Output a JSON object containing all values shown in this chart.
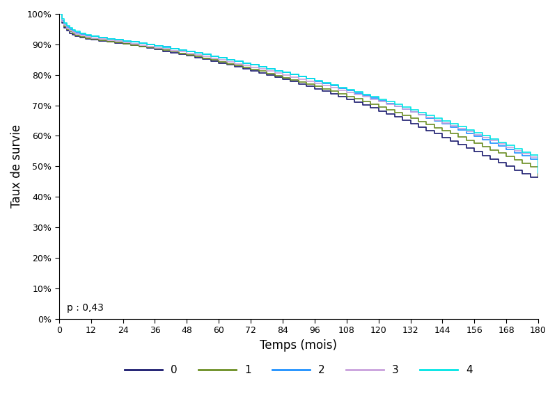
{
  "xlabel": "Temps (mois)",
  "ylabel": "Taux de survie",
  "p_text": "p : 0,43",
  "xlim": [
    0,
    180
  ],
  "ylim": [
    0,
    1.0
  ],
  "xticks": [
    0,
    12,
    24,
    36,
    48,
    60,
    72,
    84,
    96,
    108,
    120,
    132,
    144,
    156,
    168,
    180
  ],
  "yticks": [
    0.0,
    0.1,
    0.2,
    0.3,
    0.4,
    0.5,
    0.6,
    0.7,
    0.8,
    0.9,
    1.0
  ],
  "ytick_labels": [
    "0%",
    "10%",
    "20%",
    "30%",
    "40%",
    "50%",
    "60%",
    "70%",
    "80%",
    "90%",
    "100%"
  ],
  "legend_labels": [
    "0",
    "1",
    "2",
    "3",
    "4"
  ],
  "colors": [
    "#1a1a6e",
    "#6b8e23",
    "#1e90ff",
    "#c9a0dc",
    "#00e5e5"
  ],
  "linewidths": [
    1.2,
    1.2,
    1.2,
    1.2,
    1.2
  ],
  "series": {
    "0": {
      "x": [
        0,
        1,
        2,
        3,
        4,
        5,
        6,
        8,
        10,
        12,
        15,
        18,
        21,
        24,
        27,
        30,
        33,
        36,
        39,
        42,
        45,
        48,
        51,
        54,
        57,
        60,
        63,
        66,
        69,
        72,
        75,
        78,
        81,
        84,
        87,
        90,
        93,
        96,
        99,
        102,
        105,
        108,
        111,
        114,
        117,
        120,
        123,
        126,
        129,
        132,
        135,
        138,
        141,
        144,
        147,
        150,
        153,
        156,
        159,
        162,
        165,
        168,
        171,
        174,
        177,
        180
      ],
      "y": [
        1.0,
        0.97,
        0.955,
        0.945,
        0.937,
        0.932,
        0.927,
        0.922,
        0.918,
        0.916,
        0.912,
        0.908,
        0.905,
        0.901,
        0.897,
        0.892,
        0.888,
        0.883,
        0.878,
        0.873,
        0.868,
        0.863,
        0.857,
        0.851,
        0.845,
        0.839,
        0.833,
        0.826,
        0.82,
        0.813,
        0.806,
        0.799,
        0.792,
        0.785,
        0.778,
        0.77,
        0.762,
        0.754,
        0.746,
        0.737,
        0.729,
        0.72,
        0.711,
        0.701,
        0.692,
        0.682,
        0.672,
        0.662,
        0.651,
        0.64,
        0.629,
        0.618,
        0.607,
        0.595,
        0.583,
        0.572,
        0.56,
        0.548,
        0.536,
        0.524,
        0.512,
        0.5,
        0.488,
        0.476,
        0.464,
        0.475
      ]
    },
    "1": {
      "x": [
        0,
        1,
        2,
        3,
        4,
        5,
        6,
        8,
        10,
        12,
        15,
        18,
        21,
        24,
        27,
        30,
        33,
        36,
        39,
        42,
        45,
        48,
        51,
        54,
        57,
        60,
        63,
        66,
        69,
        72,
        75,
        78,
        81,
        84,
        87,
        90,
        93,
        96,
        99,
        102,
        105,
        108,
        111,
        114,
        117,
        120,
        123,
        126,
        129,
        132,
        135,
        138,
        141,
        144,
        147,
        150,
        153,
        156,
        159,
        162,
        165,
        168,
        171,
        174,
        177,
        180
      ],
      "y": [
        1.0,
        0.975,
        0.96,
        0.95,
        0.942,
        0.936,
        0.93,
        0.924,
        0.92,
        0.917,
        0.913,
        0.909,
        0.906,
        0.902,
        0.898,
        0.894,
        0.89,
        0.885,
        0.881,
        0.876,
        0.871,
        0.866,
        0.861,
        0.855,
        0.849,
        0.843,
        0.837,
        0.831,
        0.825,
        0.818,
        0.812,
        0.805,
        0.798,
        0.791,
        0.784,
        0.777,
        0.77,
        0.762,
        0.754,
        0.746,
        0.738,
        0.729,
        0.721,
        0.712,
        0.703,
        0.694,
        0.685,
        0.676,
        0.667,
        0.657,
        0.647,
        0.637,
        0.627,
        0.617,
        0.607,
        0.596,
        0.586,
        0.575,
        0.564,
        0.554,
        0.543,
        0.532,
        0.521,
        0.51,
        0.499,
        0.47
      ]
    },
    "2": {
      "x": [
        0,
        1,
        2,
        3,
        4,
        5,
        6,
        8,
        10,
        12,
        15,
        18,
        21,
        24,
        27,
        30,
        33,
        36,
        39,
        42,
        45,
        48,
        51,
        54,
        57,
        60,
        63,
        66,
        69,
        72,
        75,
        78,
        81,
        84,
        87,
        90,
        93,
        96,
        99,
        102,
        105,
        108,
        111,
        114,
        117,
        120,
        123,
        126,
        129,
        132,
        135,
        138,
        141,
        144,
        147,
        150,
        153,
        156,
        159,
        162,
        165,
        168,
        171,
        174,
        177,
        180
      ],
      "y": [
        1.0,
        0.978,
        0.966,
        0.957,
        0.95,
        0.944,
        0.939,
        0.934,
        0.93,
        0.926,
        0.922,
        0.919,
        0.915,
        0.912,
        0.908,
        0.904,
        0.9,
        0.896,
        0.892,
        0.887,
        0.882,
        0.877,
        0.872,
        0.867,
        0.861,
        0.856,
        0.85,
        0.844,
        0.839,
        0.833,
        0.827,
        0.82,
        0.814,
        0.808,
        0.801,
        0.794,
        0.787,
        0.78,
        0.773,
        0.765,
        0.757,
        0.749,
        0.741,
        0.733,
        0.724,
        0.715,
        0.706,
        0.697,
        0.688,
        0.679,
        0.669,
        0.659,
        0.649,
        0.639,
        0.629,
        0.619,
        0.609,
        0.598,
        0.588,
        0.577,
        0.566,
        0.556,
        0.545,
        0.534,
        0.523,
        0.478
      ]
    },
    "3": {
      "x": [
        0,
        1,
        2,
        3,
        4,
        5,
        6,
        8,
        10,
        12,
        15,
        18,
        21,
        24,
        27,
        30,
        33,
        36,
        39,
        42,
        45,
        48,
        51,
        54,
        57,
        60,
        63,
        66,
        69,
        72,
        75,
        78,
        81,
        84,
        87,
        90,
        93,
        96,
        99,
        102,
        105,
        108,
        111,
        114,
        117,
        120,
        123,
        126,
        129,
        132,
        135,
        138,
        141,
        144,
        147,
        150,
        153,
        156,
        159,
        162,
        165,
        168,
        171,
        174,
        177,
        180
      ],
      "y": [
        1.0,
        0.976,
        0.963,
        0.953,
        0.946,
        0.94,
        0.935,
        0.929,
        0.925,
        0.921,
        0.917,
        0.913,
        0.91,
        0.906,
        0.902,
        0.898,
        0.894,
        0.889,
        0.885,
        0.88,
        0.876,
        0.871,
        0.866,
        0.86,
        0.855,
        0.849,
        0.843,
        0.837,
        0.831,
        0.825,
        0.819,
        0.812,
        0.806,
        0.799,
        0.793,
        0.786,
        0.779,
        0.772,
        0.765,
        0.758,
        0.75,
        0.743,
        0.735,
        0.728,
        0.72,
        0.712,
        0.704,
        0.696,
        0.688,
        0.679,
        0.67,
        0.661,
        0.652,
        0.643,
        0.634,
        0.624,
        0.614,
        0.604,
        0.594,
        0.584,
        0.574,
        0.563,
        0.552,
        0.541,
        0.53,
        0.49
      ]
    },
    "4": {
      "x": [
        0,
        1,
        2,
        3,
        4,
        5,
        6,
        8,
        10,
        12,
        15,
        18,
        21,
        24,
        27,
        30,
        33,
        36,
        39,
        42,
        45,
        48,
        51,
        54,
        57,
        60,
        63,
        66,
        69,
        72,
        75,
        78,
        81,
        84,
        87,
        90,
        93,
        96,
        99,
        102,
        105,
        108,
        111,
        114,
        117,
        120,
        123,
        126,
        129,
        132,
        135,
        138,
        141,
        144,
        147,
        150,
        153,
        156,
        159,
        162,
        165,
        168,
        171,
        174,
        177,
        180
      ],
      "y": [
        1.0,
        0.983,
        0.97,
        0.961,
        0.954,
        0.948,
        0.942,
        0.936,
        0.931,
        0.927,
        0.923,
        0.919,
        0.915,
        0.911,
        0.908,
        0.904,
        0.9,
        0.896,
        0.891,
        0.887,
        0.882,
        0.877,
        0.872,
        0.867,
        0.861,
        0.856,
        0.85,
        0.845,
        0.839,
        0.833,
        0.827,
        0.82,
        0.814,
        0.808,
        0.801,
        0.795,
        0.788,
        0.781,
        0.774,
        0.767,
        0.759,
        0.752,
        0.744,
        0.736,
        0.728,
        0.72,
        0.712,
        0.703,
        0.694,
        0.686,
        0.677,
        0.668,
        0.658,
        0.649,
        0.639,
        0.63,
        0.62,
        0.61,
        0.6,
        0.59,
        0.579,
        0.569,
        0.558,
        0.547,
        0.537,
        0.48
      ]
    }
  }
}
